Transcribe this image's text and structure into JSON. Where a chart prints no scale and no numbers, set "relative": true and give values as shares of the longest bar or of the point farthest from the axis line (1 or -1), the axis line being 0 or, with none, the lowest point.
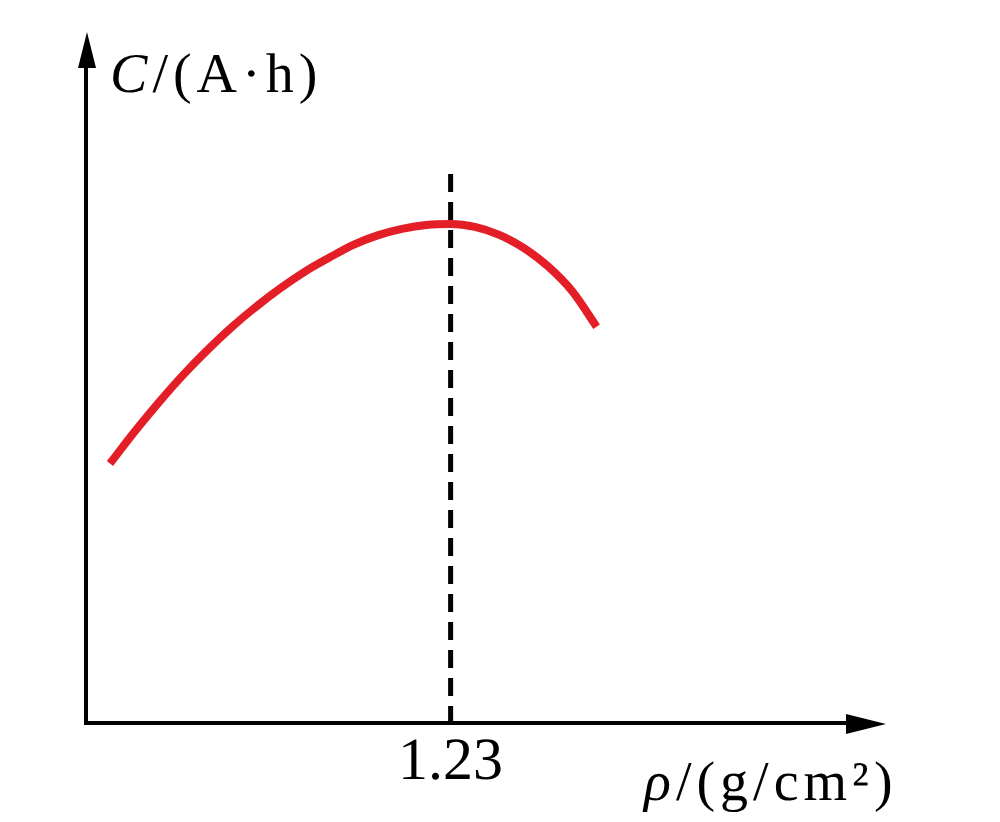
{
  "chart_data": {
    "type": "line",
    "xlabel": "ρ/(g/cm²)",
    "ylabel": "C/(A·h)",
    "categories": [
      null,
      null,
      null,
      null,
      null,
      null,
      null,
      null,
      null,
      null,
      null,
      null,
      null,
      null,
      null,
      null,
      null,
      null,
      null,
      null,
      null
    ],
    "relative": true,
    "series": [
      {
        "color": "#e41e26",
        "values": [
          0.52,
          0.583,
          0.642,
          0.697,
          0.747,
          0.793,
          0.834,
          0.871,
          0.904,
          0.932,
          0.958,
          0.977,
          0.99,
          0.998,
          1.0,
          0.994,
          0.978,
          0.952,
          0.915,
          0.865,
          0.794
        ]
      }
    ],
    "annotations": [
      "1.23"
    ],
    "marker": "none"
  }
}
